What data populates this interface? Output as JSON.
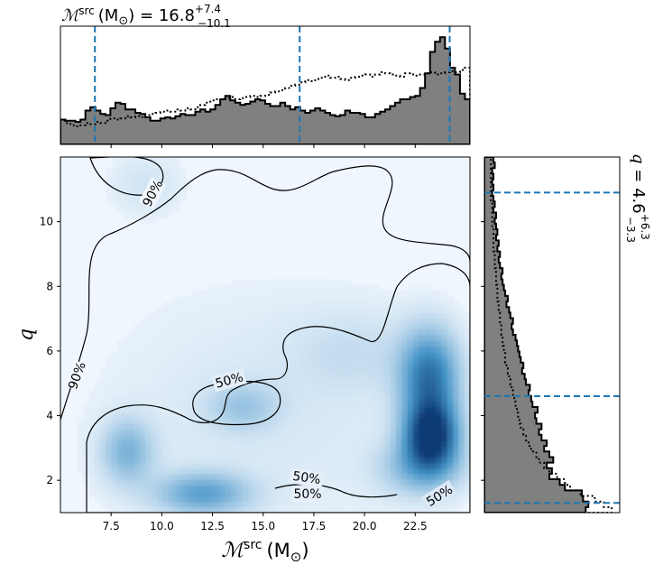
{
  "chart_data": {
    "type": "corner-plot",
    "x_parameter": {
      "label_symbol": "ℳ",
      "label_sup": "src",
      "label_unit": "(M",
      "label_unit_sub": "⊙",
      "label_close": ")",
      "median": 16.8,
      "plus": 7.4,
      "minus": 10.1,
      "title_value": "16.8",
      "title_plus": "+7.4",
      "title_minus": "−10.1",
      "range": [
        5.0,
        25.2
      ],
      "ticks": [
        7.5,
        10.0,
        12.5,
        15.0,
        17.5,
        20.0,
        22.5
      ],
      "tick_labels": [
        "7.5",
        "10.0",
        "12.5",
        "15.0",
        "17.5",
        "20.0",
        "22.5"
      ],
      "interval_lines": [
        6.7,
        16.8,
        24.2
      ]
    },
    "y_parameter": {
      "label": "q",
      "median": 4.6,
      "plus": 6.3,
      "minus": 3.3,
      "title_value": "4.6",
      "title_plus": "+6.3",
      "title_minus": "−3.3",
      "range": [
        1.0,
        12.0
      ],
      "ticks": [
        2,
        4,
        6,
        8,
        10
      ],
      "tick_labels": [
        "2",
        "4",
        "6",
        "8",
        "10"
      ],
      "interval_lines": [
        1.3,
        4.6,
        10.9
      ]
    },
    "x_histogram_solid": [
      0.22,
      0.21,
      0.21,
      0.2,
      0.22,
      0.3,
      0.33,
      0.3,
      0.27,
      0.26,
      0.32,
      0.37,
      0.36,
      0.31,
      0.31,
      0.28,
      0.27,
      0.24,
      0.21,
      0.21,
      0.23,
      0.24,
      0.23,
      0.25,
      0.27,
      0.26,
      0.26,
      0.29,
      0.31,
      0.29,
      0.31,
      0.35,
      0.4,
      0.43,
      0.39,
      0.37,
      0.35,
      0.36,
      0.38,
      0.4,
      0.39,
      0.36,
      0.34,
      0.34,
      0.37,
      0.34,
      0.31,
      0.33,
      0.3,
      0.28,
      0.3,
      0.32,
      0.3,
      0.28,
      0.26,
      0.25,
      0.26,
      0.3,
      0.28,
      0.28,
      0.27,
      0.24,
      0.24,
      0.27,
      0.29,
      0.31,
      0.34,
      0.37,
      0.4,
      0.4,
      0.42,
      0.43,
      0.5,
      0.63,
      0.82,
      0.91,
      0.95,
      0.85,
      0.68,
      0.62,
      0.45,
      0.4
    ],
    "x_histogram_dotted": [
      0.21,
      0.19,
      0.17,
      0.16,
      0.17,
      0.19,
      0.18,
      0.2,
      0.19,
      0.21,
      0.23,
      0.22,
      0.23,
      0.25,
      0.24,
      0.25,
      0.24,
      0.26,
      0.27,
      0.28,
      0.29,
      0.3,
      0.29,
      0.31,
      0.3,
      0.32,
      0.31,
      0.33,
      0.35,
      0.37,
      0.39,
      0.4,
      0.4,
      0.41,
      0.42,
      0.4,
      0.41,
      0.42,
      0.43,
      0.42,
      0.43,
      0.44,
      0.46,
      0.47,
      0.48,
      0.5,
      0.52,
      0.53,
      0.55,
      0.57,
      0.56,
      0.58,
      0.59,
      0.61,
      0.59,
      0.6,
      0.58,
      0.57,
      0.59,
      0.6,
      0.61,
      0.62,
      0.6,
      0.62,
      0.64,
      0.63,
      0.62,
      0.61,
      0.6,
      0.63,
      0.62,
      0.61,
      0.62,
      0.63,
      0.64,
      0.62,
      0.63,
      0.64,
      0.65,
      0.64,
      0.66,
      0.68
    ],
    "y_histogram_solid": [
      0.78,
      0.8,
      0.76,
      0.75,
      0.62,
      0.58,
      0.5,
      0.52,
      0.48,
      0.53,
      0.5,
      0.46,
      0.48,
      0.44,
      0.42,
      0.44,
      0.4,
      0.39,
      0.41,
      0.37,
      0.36,
      0.34,
      0.35,
      0.32,
      0.31,
      0.29,
      0.3,
      0.28,
      0.27,
      0.26,
      0.25,
      0.24,
      0.22,
      0.21,
      0.22,
      0.2,
      0.19,
      0.17,
      0.18,
      0.16,
      0.15,
      0.14,
      0.13,
      0.14,
      0.12,
      0.11,
      0.12,
      0.1,
      0.11,
      0.09,
      0.1,
      0.09,
      0.08,
      0.09,
      0.07,
      0.08,
      0.07,
      0.06,
      0.07,
      0.06,
      0.07,
      0.06,
      0.08,
      0.07
    ],
    "y_histogram_dotted": [
      0.98,
      0.92,
      0.85,
      0.74,
      0.66,
      0.62,
      0.56,
      0.5,
      0.46,
      0.42,
      0.4,
      0.36,
      0.34,
      0.32,
      0.3,
      0.28,
      0.27,
      0.26,
      0.25,
      0.24,
      0.23,
      0.22,
      0.21,
      0.2,
      0.19,
      0.18,
      0.17,
      0.16,
      0.16,
      0.15,
      0.14,
      0.14,
      0.13,
      0.13,
      0.12,
      0.12,
      0.11,
      0.11,
      0.1,
      0.1,
      0.1,
      0.09,
      0.09,
      0.09,
      0.08,
      0.08,
      0.08,
      0.07,
      0.07,
      0.07,
      0.07,
      0.06,
      0.06,
      0.06,
      0.06,
      0.06,
      0.05,
      0.05,
      0.05,
      0.05,
      0.05,
      0.05,
      0.05,
      0.05
    ],
    "density_peaks": [
      {
        "x": 23.3,
        "q": 3.4,
        "sx": 0.9,
        "sq": 0.7,
        "w": 1.0
      },
      {
        "x": 23.2,
        "q": 5.2,
        "sx": 1.0,
        "sq": 1.0,
        "w": 0.7
      },
      {
        "x": 22.8,
        "q": 2.4,
        "sx": 1.4,
        "sq": 0.6,
        "w": 0.35
      },
      {
        "x": 12.0,
        "q": 1.6,
        "sx": 1.6,
        "sq": 0.45,
        "w": 0.45
      },
      {
        "x": 8.3,
        "q": 2.9,
        "sx": 0.9,
        "sq": 0.7,
        "w": 0.35
      },
      {
        "x": 14.0,
        "q": 4.3,
        "sx": 1.2,
        "sq": 0.5,
        "w": 0.22
      },
      {
        "x": 19.5,
        "q": 6.0,
        "sx": 2.2,
        "sq": 0.9,
        "w": 0.1
      },
      {
        "x": 9.2,
        "q": 11.2,
        "sx": 1.3,
        "sq": 0.7,
        "w": 0.1
      }
    ],
    "contour_labels": [
      "90%",
      "90%",
      "50%",
      "50%",
      "50%",
      "50%"
    ],
    "colors": {
      "hist_fill": "#808080",
      "interval_line": "#1f77b4",
      "density_low": "#f0f6fd",
      "density_high": "#08306b"
    }
  }
}
